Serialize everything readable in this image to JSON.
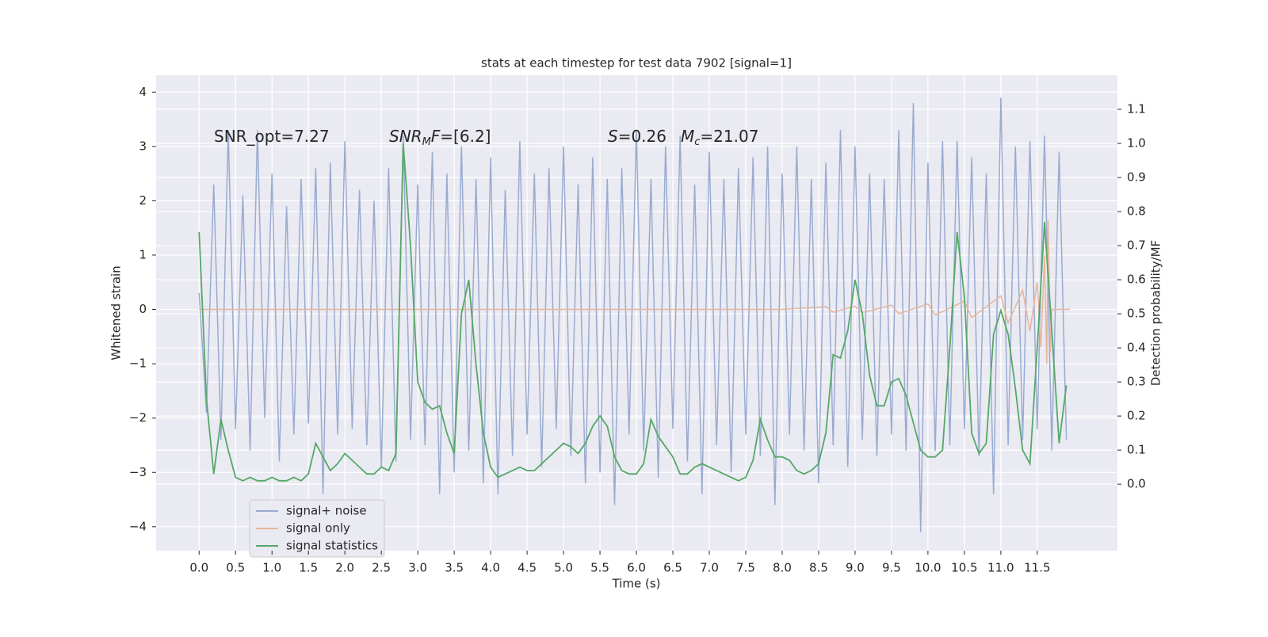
{
  "chart_data": {
    "type": "line",
    "title": "stats at each timestep for test data 7902 [signal=1]",
    "xlabel": "Time (s)",
    "ylabel": "Whitened strain",
    "y2label": "Detection probability/MF",
    "annotations": [
      [
        "SNR_opt=7.27"
      ],
      [
        "SNR",
        "M",
        "F",
        "=[6.2]"
      ],
      [
        "S",
        "=0.26"
      ],
      [
        "M",
        "c",
        "=21.07"
      ]
    ],
    "xlim": [
      -0.59,
      12.6
    ],
    "ylim": [
      -4.44,
      4.31
    ],
    "y2lim": [
      -0.195,
      1.2
    ],
    "xticks": [
      {
        "value": 0,
        "label": "0.0"
      },
      0.5,
      {
        "value": 1,
        "label": "1.0"
      },
      1.5,
      {
        "value": 2,
        "label": "2.0"
      },
      2.5,
      {
        "value": 3,
        "label": "3.0"
      },
      3.5,
      {
        "value": 4,
        "label": "4.0"
      },
      4.5,
      {
        "value": 5,
        "label": "5.0"
      },
      5.5,
      {
        "value": 6,
        "label": "6.0"
      },
      6.5,
      {
        "value": 7,
        "label": "7.0"
      },
      7.5,
      {
        "value": 8,
        "label": "8.0"
      },
      8.5,
      {
        "value": 9,
        "label": "9.0"
      },
      9.5,
      {
        "value": 10,
        "label": "10.0"
      },
      10.5,
      {
        "value": 11,
        "label": "11.0"
      },
      11.5
    ],
    "yticks": [
      {
        "value": -4,
        "label": "−4"
      },
      {
        "value": -3,
        "label": "−3"
      },
      {
        "value": -2,
        "label": "−2"
      },
      {
        "value": -1,
        "label": "−1"
      },
      0,
      1,
      2,
      3,
      4
    ],
    "y2ticks": [
      {
        "value": 0,
        "label": "0.0"
      },
      0.1,
      0.2,
      0.3,
      0.4,
      0.5,
      0.6,
      0.7,
      0.8,
      0.9,
      {
        "value": 1,
        "label": "1.0"
      },
      1.1
    ],
    "grid": true,
    "legend": "lower left",
    "x": [
      0,
      0.1,
      0.2,
      0.3,
      0.4,
      0.5,
      0.6,
      0.7,
      0.8,
      0.9,
      1,
      1.1,
      1.2,
      1.3,
      1.4,
      1.5,
      1.6,
      1.7,
      1.8,
      1.9,
      2,
      2.1,
      2.2,
      2.3,
      2.4,
      2.5,
      2.6,
      2.7,
      2.8,
      2.9,
      3,
      3.1,
      3.2,
      3.3,
      3.4,
      3.5,
      3.6,
      3.7,
      3.8,
      3.9,
      4,
      4.1,
      4.2,
      4.3,
      4.4,
      4.5,
      4.6,
      4.7,
      4.8,
      4.9,
      5,
      5.1,
      5.2,
      5.3,
      5.4,
      5.5,
      5.6,
      5.7,
      5.8,
      5.9,
      6,
      6.1,
      6.2,
      6.3,
      6.4,
      6.5,
      6.6,
      6.7,
      6.8,
      6.9,
      7,
      7.1,
      7.2,
      7.3,
      7.4,
      7.5,
      7.6,
      7.7,
      7.8,
      7.9,
      8,
      8.1,
      8.2,
      8.3,
      8.4,
      8.5,
      8.6,
      8.7,
      8.8,
      8.9,
      9,
      9.1,
      9.2,
      9.3,
      9.4,
      9.5,
      9.6,
      9.7,
      9.8,
      9.9,
      10,
      10.1,
      10.2,
      10.3,
      10.4,
      10.5,
      10.6,
      10.7,
      10.8,
      10.9,
      11,
      11.1,
      11.2,
      11.3,
      11.4,
      11.5,
      11.6,
      11.7,
      11.8,
      11.9
    ],
    "series": [
      {
        "name": "signal+ noise",
        "color": "#9aabd0",
        "values": [
          0.3,
          -1.9,
          2.3,
          -2.4,
          3.3,
          -2.2,
          2.1,
          -2.6,
          3.3,
          -2.0,
          2.5,
          -2.8,
          1.9,
          -2.3,
          2.4,
          -2.1,
          2.6,
          -3.4,
          2.7,
          -2.3,
          3.1,
          -2.2,
          2.2,
          -2.5,
          2.0,
          -2.9,
          2.6,
          -2.8,
          3.2,
          -2.4,
          2.3,
          -2.5,
          2.9,
          -3.4,
          2.5,
          -3.0,
          3.0,
          -2.6,
          2.4,
          -3.2,
          2.8,
          -3.4,
          2.2,
          -2.7,
          3.1,
          -2.3,
          2.5,
          -2.9,
          2.6,
          -2.2,
          3.0,
          -2.7,
          2.3,
          -3.2,
          2.8,
          -3.0,
          2.4,
          -3.6,
          2.6,
          -2.3,
          3.3,
          -2.6,
          2.4,
          -3.1,
          3.0,
          -2.2,
          3.2,
          -2.8,
          2.3,
          -3.4,
          2.9,
          -2.5,
          2.4,
          -3.0,
          2.6,
          -2.3,
          2.8,
          -2.7,
          3.0,
          -3.6,
          2.5,
          -2.3,
          3.0,
          -2.6,
          2.4,
          -3.2,
          2.7,
          -2.5,
          3.3,
          -2.9,
          3.0,
          -2.4,
          2.5,
          -2.7,
          2.4,
          -2.3,
          3.3,
          -2.6,
          3.8,
          -4.1,
          2.7,
          -2.6,
          3.1,
          -2.5,
          3.1,
          -2.2,
          2.8,
          -2.7,
          2.5,
          -3.4,
          3.9,
          -2.5,
          3.0,
          -2.4,
          3.1,
          -2.2,
          3.2,
          -2.6,
          2.9,
          -2.4
        ]
      },
      {
        "name": "signal only",
        "color": "#e8b59c",
        "x": [
          0,
          8.0,
          8.6,
          8.7,
          9.0,
          9.1,
          9.5,
          9.6,
          10.0,
          10.1,
          10.5,
          10.6,
          11.0,
          11.1,
          11.3,
          11.4,
          11.5,
          11.55,
          11.6,
          11.63,
          11.65,
          11.68,
          11.7,
          11.95
        ],
        "values": [
          0,
          0,
          0.05,
          -0.05,
          0.06,
          -0.06,
          0.08,
          -0.08,
          0.1,
          -0.1,
          0.15,
          -0.15,
          0.25,
          -0.25,
          0.35,
          -0.4,
          0.5,
          -0.7,
          1.0,
          -1.0,
          1.65,
          -0.8,
          0,
          0
        ]
      },
      {
        "name": "signal statistics",
        "color": "#55a868",
        "axis": "y2",
        "values": [
          0.74,
          0.25,
          0.03,
          0.19,
          0.1,
          0.02,
          0.01,
          0.02,
          0.01,
          0.01,
          0.02,
          0.01,
          0.01,
          0.02,
          0.01,
          0.03,
          0.12,
          0.08,
          0.04,
          0.06,
          0.09,
          0.07,
          0.05,
          0.03,
          0.03,
          0.05,
          0.04,
          0.09,
          1.0,
          0.7,
          0.3,
          0.24,
          0.22,
          0.23,
          0.15,
          0.09,
          0.5,
          0.6,
          0.35,
          0.15,
          0.05,
          0.02,
          0.03,
          0.04,
          0.05,
          0.04,
          0.04,
          0.06,
          0.08,
          0.1,
          0.12,
          0.11,
          0.09,
          0.12,
          0.17,
          0.2,
          0.17,
          0.08,
          0.04,
          0.03,
          0.03,
          0.06,
          0.19,
          0.14,
          0.11,
          0.08,
          0.03,
          0.03,
          0.05,
          0.06,
          0.05,
          0.04,
          0.03,
          0.02,
          0.01,
          0.02,
          0.07,
          0.19,
          0.13,
          0.08,
          0.08,
          0.07,
          0.04,
          0.03,
          0.04,
          0.06,
          0.15,
          0.38,
          0.37,
          0.45,
          0.6,
          0.5,
          0.32,
          0.23,
          0.23,
          0.3,
          0.31,
          0.26,
          0.18,
          0.1,
          0.08,
          0.08,
          0.1,
          0.4,
          0.74,
          0.55,
          0.15,
          0.09,
          0.12,
          0.44,
          0.51,
          0.44,
          0.28,
          0.1,
          0.06,
          0.4,
          0.77,
          0.45,
          0.12,
          0.29
        ]
      }
    ]
  }
}
